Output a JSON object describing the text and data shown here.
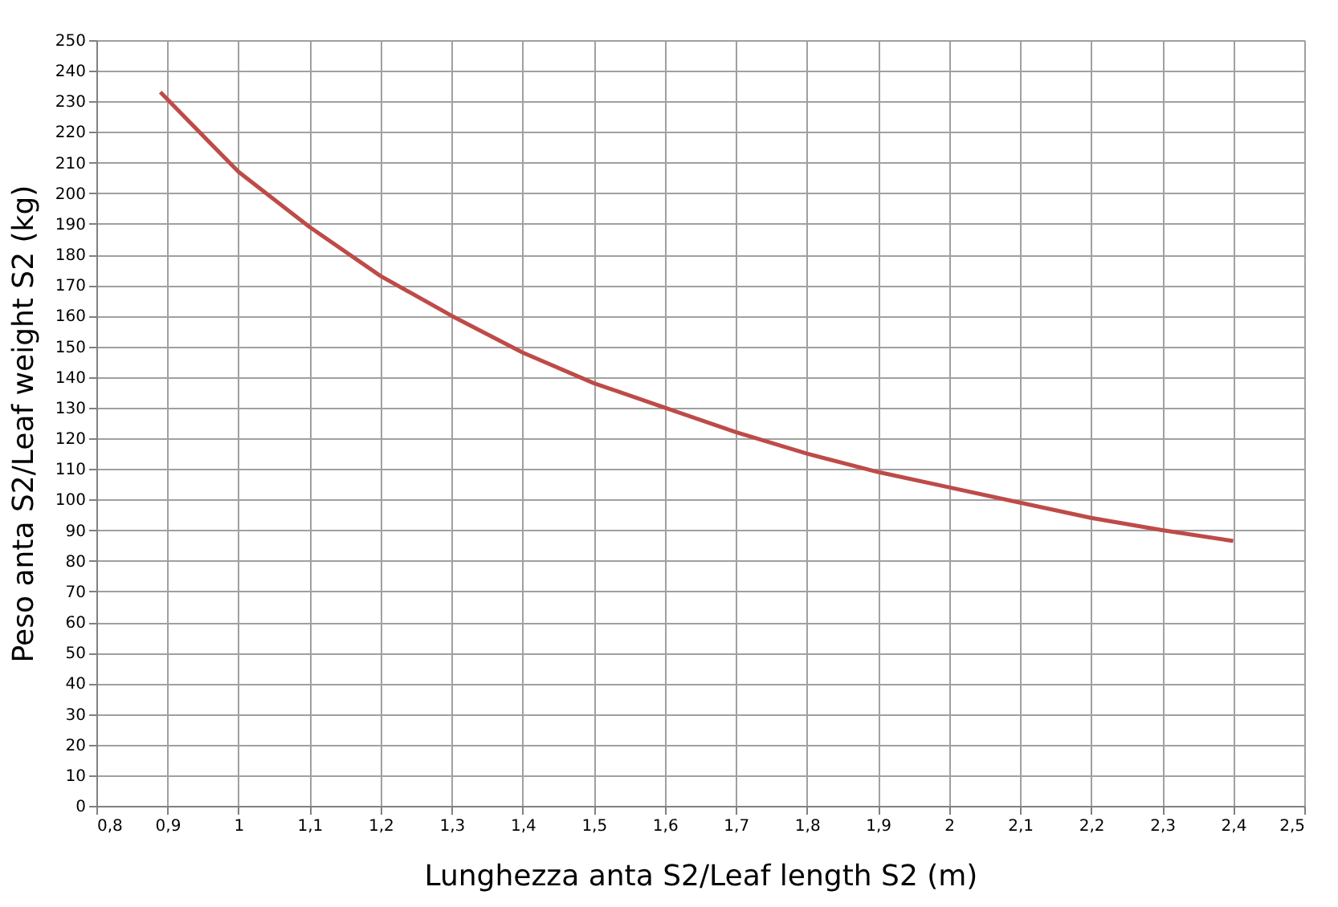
{
  "chart_data": {
    "type": "line",
    "xlabel": "Lunghezza anta S2/Leaf length S2 (m)",
    "ylabel": "Peso anta S2/Leaf weight S2 (kg)",
    "x": [
      0.89,
      1.0,
      1.1,
      1.2,
      1.3,
      1.4,
      1.5,
      1.6,
      1.7,
      1.8,
      1.9,
      2.0,
      2.1,
      2.2,
      2.3,
      2.4
    ],
    "series": [
      {
        "color": "#be4b48",
        "values": [
          233,
          207,
          189,
          173,
          160,
          148,
          138,
          130,
          122,
          115,
          109,
          104,
          99,
          94,
          90,
          86.5
        ]
      }
    ],
    "xlim": [
      0.8,
      2.5
    ],
    "xticks": [
      {
        "value": 0.8,
        "label": "0,8"
      },
      {
        "value": 0.9,
        "label": "0,9"
      },
      1,
      {
        "value": 1.1,
        "label": "1,1"
      },
      {
        "value": 1.2,
        "label": "1,2"
      },
      {
        "value": 1.3,
        "label": "1,3"
      },
      {
        "value": 1.4,
        "label": "1,4"
      },
      {
        "value": 1.5,
        "label": "1,5"
      },
      {
        "value": 1.6,
        "label": "1,6"
      },
      {
        "value": 1.7,
        "label": "1,7"
      },
      {
        "value": 1.8,
        "label": "1,8"
      },
      {
        "value": 1.9,
        "label": "1,9"
      },
      2,
      {
        "value": 2.1,
        "label": "2,1"
      },
      {
        "value": 2.2,
        "label": "2,2"
      },
      {
        "value": 2.3,
        "label": "2,3"
      },
      {
        "value": 2.4,
        "label": "2,4"
      },
      {
        "value": 2.5,
        "label": "2,5"
      }
    ],
    "ylim": [
      0,
      250
    ],
    "yticks": [
      0,
      10,
      20,
      30,
      40,
      50,
      60,
      70,
      80,
      90,
      100,
      110,
      120,
      130,
      140,
      150,
      160,
      170,
      180,
      190,
      200,
      210,
      220,
      230,
      240,
      250
    ],
    "grid": true,
    "marker": "none",
    "line_style": "solid"
  }
}
